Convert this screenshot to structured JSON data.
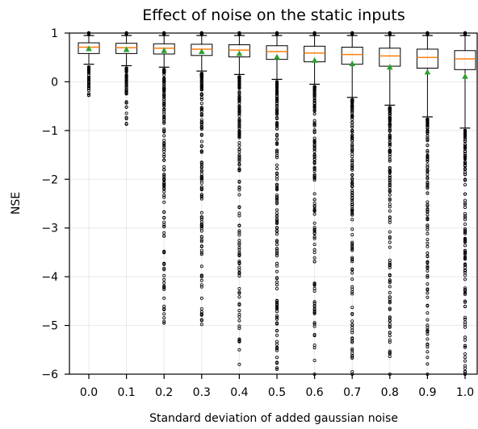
{
  "chart_data": {
    "type": "box",
    "title": "Effect of noise on the static inputs",
    "xlabel": "Standard deviation of added gaussian noise",
    "ylabel": "NSE",
    "ylim": [
      -6,
      1
    ],
    "yticks": [
      1,
      0,
      -1,
      -2,
      -3,
      -4,
      -5,
      -6
    ],
    "ytick_labels": [
      "1",
      "0",
      "−1",
      "−2",
      "−3",
      "−4",
      "−5",
      "−6"
    ],
    "categories": [
      "0.0",
      "0.1",
      "0.2",
      "0.3",
      "0.4",
      "0.5",
      "0.6",
      "0.7",
      "0.8",
      "0.9",
      "1.0"
    ],
    "grid": true,
    "colors": {
      "median": "#ff7f0e",
      "mean": "#2ca02c",
      "box": "#000000"
    },
    "boxes": [
      {
        "whislo": 0.36,
        "q1": 0.58,
        "med": 0.71,
        "q3": 0.8,
        "whishi": 0.95,
        "mean": 0.68,
        "flier_min": -0.28,
        "flier_top": 0.36
      },
      {
        "whislo": 0.33,
        "q1": 0.58,
        "med": 0.7,
        "q3": 0.79,
        "whishi": 0.95,
        "mean": 0.66,
        "flier_min": -0.87,
        "flier_top": 0.33
      },
      {
        "whislo": 0.3,
        "q1": 0.57,
        "med": 0.69,
        "q3": 0.78,
        "whishi": 0.95,
        "mean": 0.64,
        "flier_min": -4.95,
        "flier_top": 0.3
      },
      {
        "whislo": 0.22,
        "q1": 0.54,
        "med": 0.67,
        "q3": 0.77,
        "whishi": 0.95,
        "mean": 0.62,
        "flier_min": -4.98,
        "flier_top": 0.22
      },
      {
        "whislo": 0.15,
        "q1": 0.51,
        "med": 0.65,
        "q3": 0.76,
        "whishi": 0.95,
        "mean": 0.58,
        "flier_min": -5.8,
        "flier_top": 0.15
      },
      {
        "whislo": 0.05,
        "q1": 0.46,
        "med": 0.62,
        "q3": 0.74,
        "whishi": 0.95,
        "mean": 0.51,
        "flier_min": -5.9,
        "flier_top": 0.05
      },
      {
        "whislo": -0.05,
        "q1": 0.41,
        "med": 0.59,
        "q3": 0.73,
        "whishi": 0.95,
        "mean": 0.44,
        "flier_min": -6.0,
        "flier_top": -0.05
      },
      {
        "whislo": -0.32,
        "q1": 0.36,
        "med": 0.56,
        "q3": 0.71,
        "whishi": 0.95,
        "mean": 0.37,
        "flier_min": -6.0,
        "flier_top": -0.32
      },
      {
        "whislo": -0.48,
        "q1": 0.32,
        "med": 0.53,
        "q3": 0.69,
        "whishi": 0.95,
        "mean": 0.3,
        "flier_min": -6.0,
        "flier_top": -0.48
      },
      {
        "whislo": -0.72,
        "q1": 0.28,
        "med": 0.5,
        "q3": 0.67,
        "whishi": 0.95,
        "mean": 0.2,
        "flier_min": -6.0,
        "flier_top": -0.72
      },
      {
        "whislo": -0.95,
        "q1": 0.25,
        "med": 0.47,
        "q3": 0.64,
        "whishi": 0.95,
        "mean": 0.11,
        "flier_min": -6.0,
        "flier_top": -0.95
      }
    ]
  }
}
